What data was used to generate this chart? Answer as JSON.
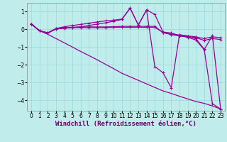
{
  "background_color": "#c0ecec",
  "line_color": "#990099",
  "xlabel": "Windchill (Refroidissement éolien,°C)",
  "xlabel_fontsize": 6.5,
  "tick_fontsize": 5.5,
  "xlim": [
    -0.5,
    23.5
  ],
  "ylim": [
    -4.6,
    1.5
  ],
  "yticks": [
    1,
    0,
    -1,
    -2,
    -3,
    -4
  ],
  "xticks": [
    0,
    1,
    2,
    3,
    4,
    5,
    6,
    7,
    8,
    9,
    10,
    11,
    12,
    13,
    14,
    15,
    16,
    17,
    18,
    19,
    20,
    21,
    22,
    23
  ],
  "line1_y": [
    0.3,
    -0.08,
    -0.2,
    0.05,
    0.15,
    0.22,
    0.28,
    0.35,
    0.42,
    0.48,
    0.52,
    0.58,
    1.2,
    0.25,
    1.1,
    0.85,
    -0.15,
    -0.2,
    -0.35,
    -0.45,
    -0.6,
    -1.15,
    -0.35,
    -4.5
  ],
  "line2_y": [
    0.3,
    -0.08,
    -0.2,
    0.05,
    0.1,
    0.12,
    0.13,
    0.14,
    0.14,
    0.14,
    0.15,
    0.17,
    0.17,
    0.17,
    0.17,
    0.17,
    -0.18,
    -0.27,
    -0.32,
    -0.37,
    -0.42,
    -0.52,
    -0.42,
    -0.47
  ],
  "line3_y": [
    0.3,
    -0.08,
    -0.2,
    0.02,
    0.07,
    0.1,
    0.1,
    0.1,
    0.1,
    0.1,
    0.12,
    0.12,
    0.12,
    0.12,
    0.12,
    0.12,
    -0.18,
    -0.3,
    -0.37,
    -0.42,
    -0.47,
    -0.62,
    -0.52,
    -0.57
  ],
  "line4_y": [
    0.3,
    -0.08,
    -0.28,
    -0.52,
    -0.76,
    -1.0,
    -1.25,
    -1.48,
    -1.72,
    -1.97,
    -2.22,
    -2.48,
    -2.68,
    -2.88,
    -3.08,
    -3.28,
    -3.48,
    -3.62,
    -3.78,
    -3.93,
    -4.08,
    -4.18,
    -4.33,
    -4.5
  ],
  "line5_y": [
    0.3,
    -0.08,
    -0.2,
    0.02,
    0.07,
    0.1,
    0.15,
    0.22,
    0.3,
    0.37,
    0.46,
    0.56,
    1.2,
    0.25,
    1.1,
    -2.1,
    -2.45,
    -3.3,
    -0.3,
    -0.37,
    -0.52,
    -1.12,
    -4.2,
    -4.5
  ]
}
